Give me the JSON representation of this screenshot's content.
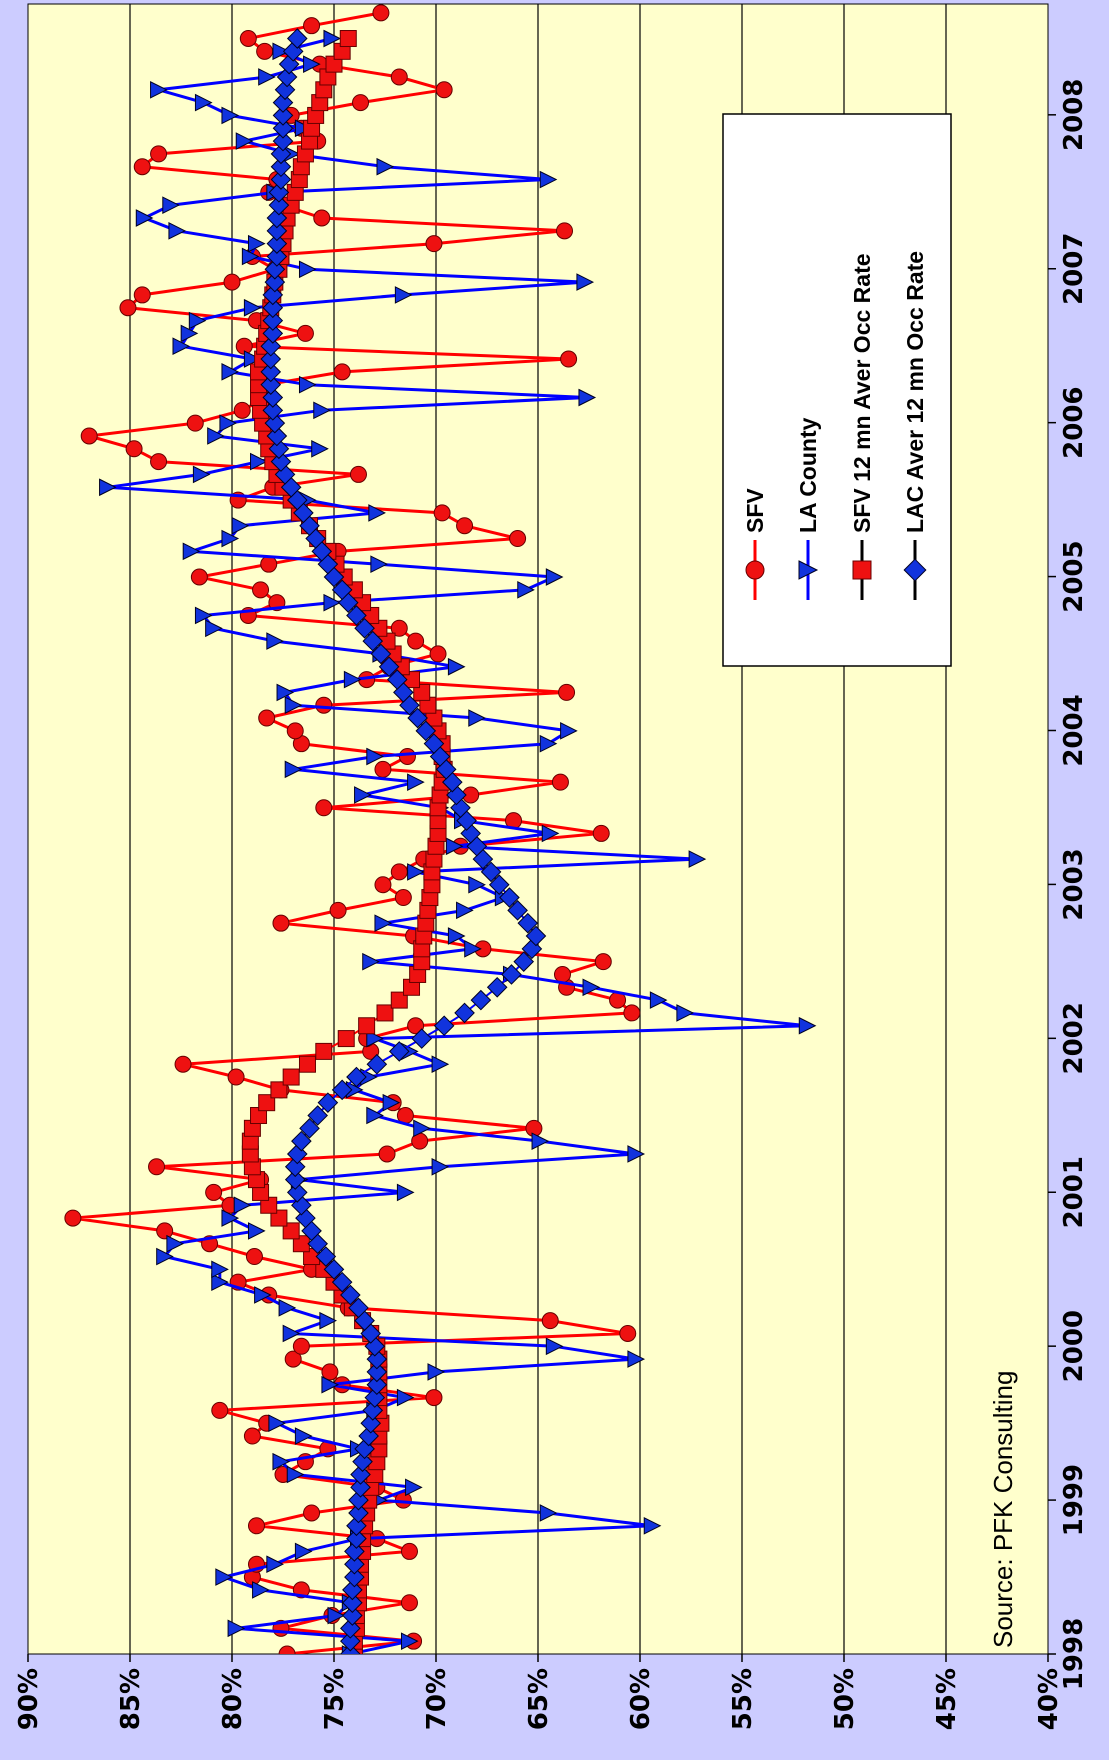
{
  "chart_data": {
    "type": "line",
    "orientation": "rotated-90-clockwise",
    "title": "",
    "xlabel": "",
    "ylabel": "",
    "source": "Source: PFK Consulting",
    "x_ticks": [
      "1998",
      "1999",
      "2000",
      "2001",
      "2002",
      "2003",
      "2004",
      "2005",
      "2006",
      "2007",
      "2008"
    ],
    "y_ticks": [
      "40%",
      "45%",
      "50%",
      "55%",
      "60%",
      "65%",
      "70%",
      "75%",
      "80%",
      "85%",
      "90%"
    ],
    "xlim": [
      1998.0,
      2008.72
    ],
    "ylim": [
      40,
      90
    ],
    "grid": true,
    "legend_position": "top-right",
    "colors": {
      "plot_bg": "#ffffcc",
      "outer_bg": "#ccccff",
      "sfv": "#ff0000",
      "la": "#0000ff",
      "sfv_marker": "#ee1111",
      "la_marker": "#1133dd"
    },
    "series": [
      {
        "name": "SFV",
        "marker": "circle",
        "values": [
          77.3,
          71.1,
          77.6,
          75.1,
          71.3,
          76.6,
          79.0,
          78.8,
          71.3,
          72.9,
          78.8,
          76.1,
          71.6,
          72.9,
          77.5,
          76.4,
          75.3,
          79.0,
          78.3,
          80.6,
          70.1,
          74.6,
          75.2,
          77.0,
          76.6,
          60.6,
          64.4,
          74.3,
          78.2,
          79.7,
          76.1,
          78.9,
          81.1,
          83.3,
          87.8,
          80.1,
          80.9,
          78.6,
          83.7,
          72.4,
          70.8,
          65.2,
          71.5,
          72.1,
          77.6,
          79.8,
          82.4,
          73.2,
          73.4,
          71.0,
          60.4,
          61.1,
          63.6,
          63.8,
          61.8,
          67.7,
          71.1,
          77.6,
          74.8,
          71.6,
          72.6,
          71.8,
          70.6,
          68.8,
          61.9,
          66.2,
          75.5,
          68.3,
          63.9,
          72.6,
          71.4,
          76.6,
          76.9,
          78.3,
          75.5,
          63.6,
          73.4,
          72.3,
          69.9,
          71.0,
          71.8,
          79.2,
          77.8,
          78.6,
          81.6,
          78.2,
          74.8,
          66.0,
          68.6,
          69.7,
          79.7,
          78.0,
          73.8,
          83.6,
          84.8,
          87.0,
          81.8,
          79.5,
          78.3,
          78.3,
          74.6,
          63.5,
          79.4,
          76.4,
          78.8,
          85.1,
          84.4,
          80.0,
          77.9,
          79.0,
          70.1,
          63.7,
          75.6,
          77.5,
          78.2,
          77.8,
          84.4,
          83.6,
          75.8,
          76.6,
          77.1,
          73.7,
          69.6,
          71.8,
          75.7,
          78.4,
          79.2,
          76.1,
          72.7
        ],
        "start_year": 1998.0,
        "step_years": 0.0833
      },
      {
        "name": "LA County",
        "marker": "triangle",
        "values": [
          74.2,
          71.3,
          79.8,
          74.9,
          74.2,
          78.6,
          80.4,
          77.9,
          76.5,
          73.8,
          59.4,
          64.5,
          72.8,
          71.1,
          76.9,
          77.6,
          73.8,
          76.5,
          77.8,
          73.0,
          71.5,
          75.2,
          70.0,
          60.2,
          64.2,
          77.1,
          75.3,
          77.3,
          78.5,
          80.6,
          80.6,
          83.3,
          82.8,
          78.8,
          80.1,
          79.5,
          71.5,
          76.7,
          69.8,
          60.2,
          64.9,
          70.7,
          73.0,
          72.2,
          74.0,
          73.3,
          69.8,
          71.3,
          73.0,
          51.8,
          57.8,
          59.1,
          62.4,
          66.3,
          73.2,
          68.2,
          69.0,
          72.6,
          68.6,
          66.7,
          68.0,
          71.0,
          57.2,
          69.1,
          64.4,
          68.7,
          69.8,
          73.6,
          71.0,
          77.0,
          73.0,
          64.5,
          63.5,
          68.0,
          77.0,
          77.4,
          74.1,
          69.0,
          72.7,
          77.9,
          80.9,
          81.4,
          75.1,
          65.6,
          64.2,
          72.8,
          82.0,
          80.1,
          79.6,
          72.9,
          76.3,
          86.1,
          81.5,
          78.7,
          75.7,
          80.8,
          80.2,
          75.6,
          62.6,
          76.3,
          80.1,
          79.0,
          82.5,
          82.1,
          81.7,
          79.0,
          71.6,
          62.7,
          76.3,
          79.1,
          78.8,
          82.7,
          84.3,
          83.0,
          77.9,
          64.5,
          72.5,
          77.1,
          79.4,
          76.5,
          80.1,
          81.4,
          83.6,
          78.3,
          76.1,
          77.6,
          75.1
        ],
        "start_year": 1998.0,
        "step_years": 0.0833
      },
      {
        "name": "SFV 12 mn Aver Occ Rate",
        "marker": "square",
        "values": [
          74.0,
          74.0,
          73.9,
          73.9,
          73.8,
          73.8,
          73.7,
          73.7,
          73.6,
          73.6,
          73.5,
          73.4,
          73.3,
          73.2,
          73.0,
          72.9,
          72.8,
          72.8,
          72.7,
          72.8,
          72.8,
          72.8,
          72.8,
          72.8,
          72.9,
          73.2,
          73.6,
          74.1,
          74.6,
          75.0,
          75.5,
          76.1,
          76.6,
          77.1,
          77.7,
          78.2,
          78.6,
          78.8,
          79.0,
          79.1,
          79.1,
          79.0,
          78.7,
          78.3,
          77.7,
          77.1,
          76.3,
          75.5,
          74.4,
          73.4,
          72.5,
          71.8,
          71.2,
          70.9,
          70.7,
          70.7,
          70.6,
          70.5,
          70.4,
          70.3,
          70.2,
          70.2,
          70.1,
          70.0,
          69.9,
          69.9,
          69.9,
          69.8,
          69.7,
          69.6,
          69.7,
          69.7,
          69.9,
          70.1,
          70.4,
          70.7,
          71.2,
          71.7,
          72.1,
          72.4,
          72.8,
          73.2,
          73.6,
          74.0,
          74.5,
          74.9,
          75.3,
          75.8,
          76.2,
          76.7,
          77.1,
          77.5,
          77.8,
          78.0,
          78.2,
          78.3,
          78.5,
          78.6,
          78.7,
          78.7,
          78.7,
          78.5,
          78.4,
          78.3,
          78.2,
          78.1,
          78.0,
          77.9,
          77.7,
          77.6,
          77.5,
          77.4,
          77.3,
          77.1,
          76.9,
          76.7,
          76.6,
          76.4,
          76.2,
          76.1,
          75.9,
          75.7,
          75.5,
          75.3,
          75.0,
          74.6,
          74.3
        ],
        "start_year": 1998.0,
        "step_years": 0.0833
      },
      {
        "name": "LAC Aver 12 mn Occ Rate",
        "marker": "diamond",
        "values": [
          74.2,
          74.2,
          74.2,
          74.1,
          74.1,
          74.1,
          74.0,
          74.0,
          74.0,
          73.9,
          73.9,
          73.8,
          73.8,
          73.7,
          73.7,
          73.6,
          73.5,
          73.3,
          73.2,
          73.1,
          73.0,
          72.9,
          72.9,
          72.9,
          73.0,
          73.2,
          73.5,
          73.8,
          74.2,
          74.6,
          75.0,
          75.4,
          75.8,
          76.1,
          76.4,
          76.6,
          76.8,
          76.9,
          76.9,
          76.8,
          76.6,
          76.2,
          75.8,
          75.3,
          74.6,
          73.9,
          72.9,
          71.8,
          70.7,
          69.6,
          68.6,
          67.8,
          67.0,
          66.3,
          65.7,
          65.3,
          65.1,
          65.5,
          66.0,
          66.4,
          66.9,
          67.3,
          67.7,
          68.0,
          68.3,
          68.5,
          68.8,
          69.0,
          69.2,
          69.5,
          69.8,
          70.1,
          70.5,
          70.9,
          71.3,
          71.6,
          71.9,
          72.3,
          72.7,
          73.1,
          73.5,
          73.9,
          74.3,
          74.6,
          75.0,
          75.3,
          75.6,
          75.9,
          76.2,
          76.5,
          76.8,
          77.1,
          77.4,
          77.6,
          77.7,
          77.8,
          77.9,
          78.0,
          78.0,
          78.1,
          78.1,
          78.1,
          78.1,
          78.0,
          78.0,
          78.0,
          78.0,
          77.9,
          77.9,
          77.8,
          77.8,
          77.8,
          77.8,
          77.7,
          77.7,
          77.6,
          77.6,
          77.6,
          77.5,
          77.5,
          77.5,
          77.5,
          77.4,
          77.3,
          77.2,
          77.0,
          76.8
        ],
        "start_year": 1998.0,
        "step_years": 0.0833
      }
    ]
  }
}
